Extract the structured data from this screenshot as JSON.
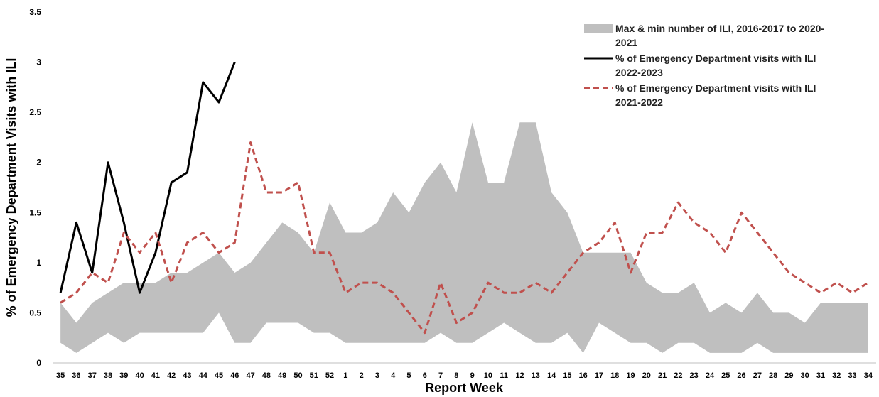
{
  "chart_data": {
    "type": "line",
    "xlabel": "Report Week",
    "ylabel": "% of Emergency Department Visits with ILI",
    "categories": [
      "35",
      "36",
      "37",
      "38",
      "39",
      "40",
      "41",
      "42",
      "43",
      "44",
      "45",
      "46",
      "47",
      "48",
      "49",
      "50",
      "51",
      "52",
      "1",
      "2",
      "3",
      "4",
      "5",
      "6",
      "7",
      "8",
      "9",
      "10",
      "11",
      "12",
      "13",
      "14",
      "15",
      "16",
      "17",
      "18",
      "19",
      "20",
      "21",
      "22",
      "23",
      "24",
      "25",
      "26",
      "27",
      "28",
      "29",
      "30",
      "31",
      "32",
      "33",
      "34"
    ],
    "ylim": [
      0,
      3.5
    ],
    "yticks": [
      0,
      0.5,
      1,
      1.5,
      2,
      2.5,
      3,
      3.5
    ],
    "grid": false,
    "legend": "upper right",
    "series": [
      {
        "name": "Max & min number of ILI, 2016-2017 to 2020-2021",
        "color": "#bfbfbf",
        "kind": "range",
        "max": [
          0.6,
          0.4,
          0.6,
          0.7,
          0.8,
          0.8,
          0.8,
          0.9,
          0.9,
          1.0,
          1.1,
          0.9,
          1.0,
          1.2,
          1.4,
          1.3,
          1.1,
          1.6,
          1.3,
          1.3,
          1.4,
          1.7,
          1.5,
          1.8,
          2.0,
          1.7,
          2.4,
          1.8,
          1.8,
          2.4,
          2.4,
          1.7,
          1.5,
          1.1,
          1.1,
          1.1,
          1.1,
          0.8,
          0.7,
          0.7,
          0.8,
          0.5,
          0.6,
          0.5,
          0.7,
          0.5,
          0.5,
          0.4,
          0.6,
          0.6,
          0.6,
          0.6
        ],
        "min": [
          0.2,
          0.1,
          0.2,
          0.3,
          0.2,
          0.3,
          0.3,
          0.3,
          0.3,
          0.3,
          0.5,
          0.2,
          0.2,
          0.4,
          0.4,
          0.4,
          0.3,
          0.3,
          0.2,
          0.2,
          0.2,
          0.2,
          0.2,
          0.2,
          0.3,
          0.2,
          0.2,
          0.3,
          0.4,
          0.3,
          0.2,
          0.2,
          0.3,
          0.1,
          0.4,
          0.3,
          0.2,
          0.2,
          0.1,
          0.2,
          0.2,
          0.1,
          0.1,
          0.1,
          0.2,
          0.1,
          0.1,
          0.1,
          0.1,
          0.1,
          0.1,
          0.1
        ]
      },
      {
        "name": "% of Emergency Department visits with ILI 2022-2023",
        "color": "#000000",
        "dashed": false,
        "values": [
          0.7,
          1.4,
          0.9,
          2.0,
          1.4,
          0.7,
          1.1,
          1.8,
          1.9,
          2.8,
          2.6,
          3.0,
          null,
          null,
          null,
          null,
          null,
          null,
          null,
          null,
          null,
          null,
          null,
          null,
          null,
          null,
          null,
          null,
          null,
          null,
          null,
          null,
          null,
          null,
          null,
          null,
          null,
          null,
          null,
          null,
          null,
          null,
          null,
          null,
          null,
          null,
          null,
          null,
          null,
          null,
          null,
          null
        ]
      },
      {
        "name": "% of Emergency Department visits with ILI 2021-2022",
        "color": "#c0504d",
        "dashed": true,
        "values": [
          0.6,
          0.7,
          0.9,
          0.8,
          1.3,
          1.1,
          1.3,
          0.8,
          1.2,
          1.3,
          1.1,
          1.2,
          2.2,
          1.7,
          1.7,
          1.8,
          1.1,
          1.1,
          0.7,
          0.8,
          0.8,
          0.7,
          0.5,
          0.3,
          0.8,
          0.4,
          0.5,
          0.8,
          0.7,
          0.7,
          0.8,
          0.7,
          0.9,
          1.1,
          1.2,
          1.4,
          0.9,
          1.3,
          1.3,
          1.6,
          1.4,
          1.3,
          1.1,
          1.5,
          1.3,
          1.1,
          0.9,
          0.8,
          0.7,
          0.8,
          0.7,
          0.8
        ]
      }
    ]
  }
}
